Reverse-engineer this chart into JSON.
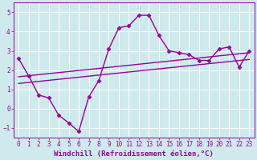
{
  "xlabel": "Windchill (Refroidissement éolien,°C)",
  "bg_color": "#ceeaed",
  "line_color": "#990099",
  "grid_color": "#ffffff",
  "xlim": [
    -0.5,
    23.5
  ],
  "ylim": [
    -1.5,
    5.5
  ],
  "yticks": [
    -1,
    0,
    1,
    2,
    3,
    4,
    5
  ],
  "xticks": [
    0,
    1,
    2,
    3,
    4,
    5,
    6,
    7,
    8,
    9,
    10,
    11,
    12,
    13,
    14,
    15,
    16,
    17,
    18,
    19,
    20,
    21,
    22,
    23
  ],
  "series1_x": [
    0,
    1,
    2,
    3,
    4,
    5,
    6,
    7,
    8,
    9,
    10,
    11,
    12,
    13,
    14,
    15,
    16,
    17,
    18,
    19,
    20,
    21,
    22,
    23
  ],
  "series1_y": [
    2.6,
    1.7,
    0.7,
    0.55,
    -0.35,
    -0.75,
    -1.2,
    0.6,
    1.45,
    3.1,
    4.2,
    4.3,
    4.85,
    4.85,
    3.8,
    3.0,
    2.9,
    2.8,
    2.5,
    2.5,
    3.1,
    3.2,
    2.15,
    3.0
  ],
  "line1_x": [
    0,
    23
  ],
  "line1_y": [
    1.65,
    2.9
  ],
  "line2_x": [
    0,
    23
  ],
  "line2_y": [
    1.3,
    2.55
  ],
  "marker": "D",
  "markersize": 2.5,
  "linewidth": 1.0,
  "fontsize_xlabel": 6.5,
  "fontsize_ticks": 5.5
}
